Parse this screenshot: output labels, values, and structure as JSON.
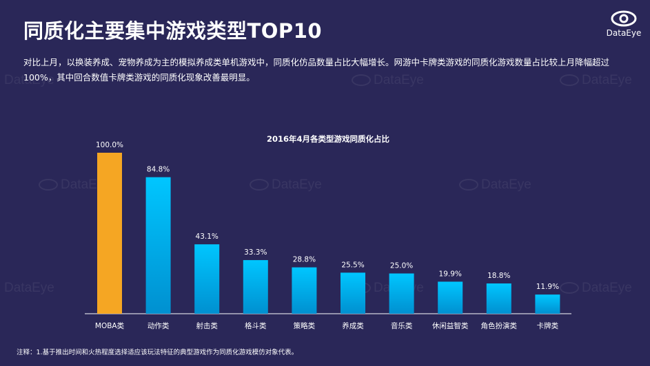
{
  "header": {
    "title": "同质化主要集中游戏类型TOP10",
    "logo_text": "DataEye",
    "description": "对比上月，以换装养成、宠物养成为主的模拟养成类单机游戏中，同质化仿品数量占比大幅增长。网游中卡牌类游戏的同质化游戏数量占比较上月降幅超过100%，其中回合数值卡牌类游戏的同质化现象改善最明显。"
  },
  "watermark": "DataEye",
  "footer": {
    "note": "注释：1.基于推出时间和火热程度选择适应该玩法特征的典型游戏作为同质化游戏模仿对象代表。"
  },
  "colors": {
    "highlight_bar": "#f5a623",
    "bar_top": "#00c6ff",
    "bar_bottom": "#0090d0",
    "axis": "#ffffff"
  },
  "chart_data": {
    "type": "bar",
    "title": "2016年4月各类型游戏同质化占比",
    "categories": [
      "MOBA类",
      "动作类",
      "射击类",
      "格斗类",
      "策略类",
      "养成类",
      "音乐类",
      "休闲益智类",
      "角色扮演类",
      "卡牌类"
    ],
    "values": [
      100.0,
      84.8,
      43.1,
      33.3,
      28.8,
      25.5,
      25.0,
      19.9,
      18.8,
      11.9
    ],
    "value_labels": [
      "100.0%",
      "84.8%",
      "43.1%",
      "33.3%",
      "28.8%",
      "25.5%",
      "25.0%",
      "19.9%",
      "18.8%",
      "11.9%"
    ],
    "highlight_index": 0,
    "ylim": [
      0,
      100
    ],
    "xlabel": "",
    "ylabel": ""
  }
}
